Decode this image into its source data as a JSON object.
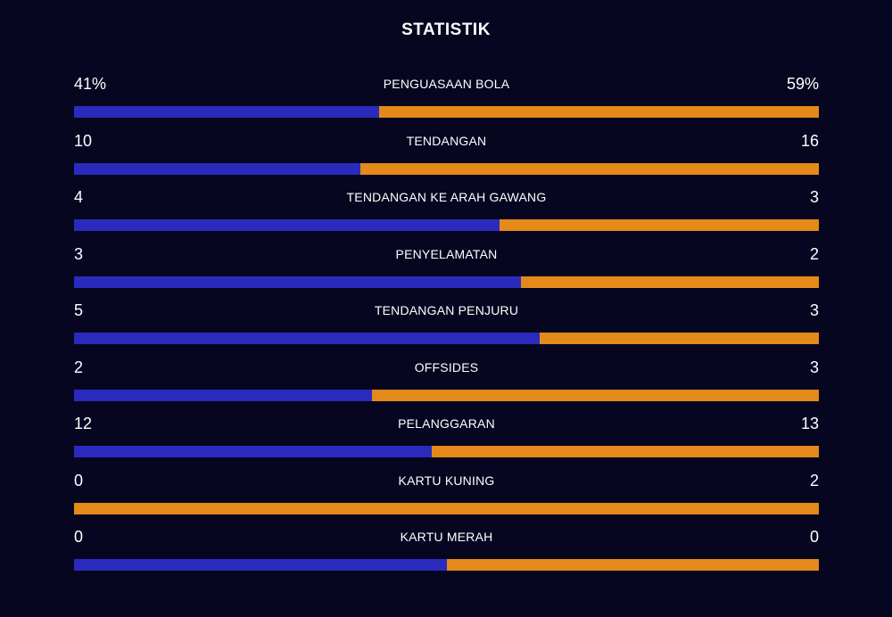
{
  "title": "STATISTIK",
  "colors": {
    "home": "#2a2bbd",
    "away": "#e38a1a",
    "background": "#070620"
  },
  "stats": [
    {
      "label": "PENGUASAAN BOLA",
      "home": "41%",
      "away": "59%",
      "home_share": 0.41
    },
    {
      "label": "TENDANGAN",
      "home": "10",
      "away": "16",
      "home_share": 0.385
    },
    {
      "label": "TENDANGAN KE ARAH GAWANG",
      "home": "4",
      "away": "3",
      "home_share": 0.571
    },
    {
      "label": "PENYELAMATAN",
      "home": "3",
      "away": "2",
      "home_share": 0.6
    },
    {
      "label": "TENDANGAN PENJURU",
      "home": "5",
      "away": "3",
      "home_share": 0.625
    },
    {
      "label": "OFFSIDES",
      "home": "2",
      "away": "3",
      "home_share": 0.4
    },
    {
      "label": "PELANGGARAN",
      "home": "12",
      "away": "13",
      "home_share": 0.48
    },
    {
      "label": "KARTU KUNING",
      "home": "0",
      "away": "2",
      "home_share": 0
    },
    {
      "label": "KARTU MERAH",
      "home": "0",
      "away": "0",
      "home_share": 0.5
    }
  ]
}
